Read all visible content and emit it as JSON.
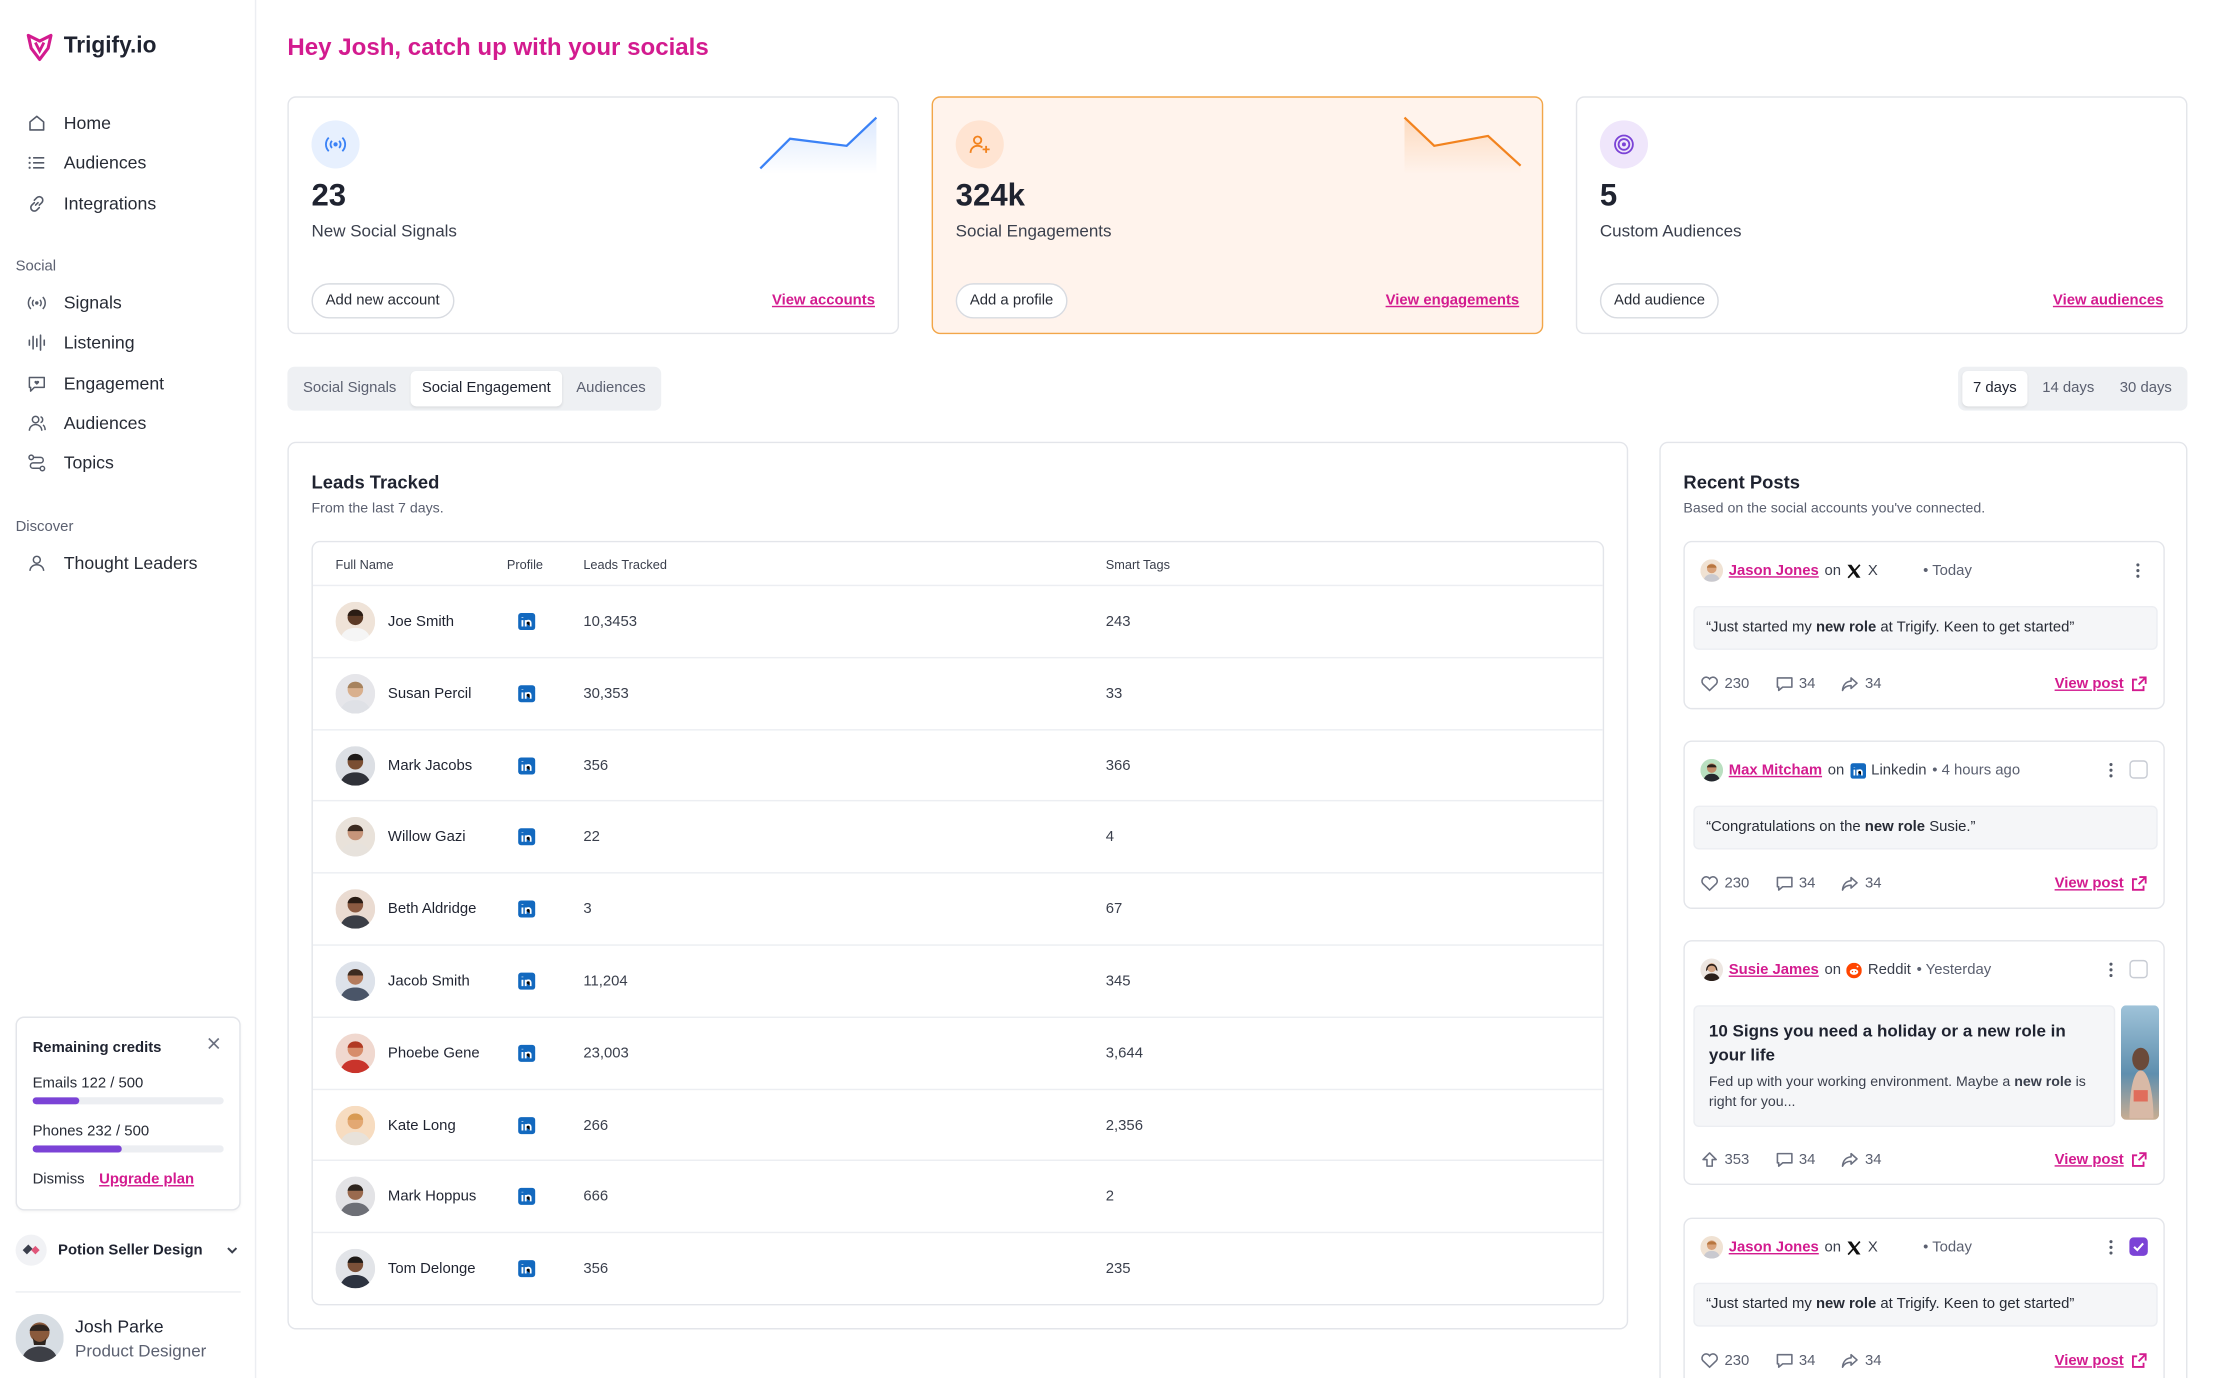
{
  "app": {
    "brand": "Trigify.io",
    "accent": "#d31b8f"
  },
  "sidebar": {
    "primary": [
      {
        "label": "Home",
        "icon": "home-icon"
      },
      {
        "label": "Audiences",
        "icon": "list-icon"
      },
      {
        "label": "Integrations",
        "icon": "link-icon"
      }
    ],
    "social_label": "Social",
    "social": [
      {
        "label": "Signals",
        "icon": "signal-icon"
      },
      {
        "label": "Listening",
        "icon": "waveform-icon"
      },
      {
        "label": "Engagement",
        "icon": "chat-heart-icon"
      },
      {
        "label": "Audiences",
        "icon": "users-icon"
      },
      {
        "label": "Topics",
        "icon": "route-icon"
      }
    ],
    "discover_label": "Discover",
    "discover": [
      {
        "label": "Thought Leaders",
        "icon": "user-icon"
      }
    ],
    "credits": {
      "title": "Remaining credits",
      "emails_label": "Emails 122 / 500",
      "emails_fraction": 0.244,
      "phones_label": "Phones 232 / 500",
      "phones_fraction": 0.464,
      "dismiss": "Dismiss",
      "upgrade": "Upgrade plan"
    },
    "workspace": "Potion Seller Design",
    "user": {
      "name": "Josh Parke",
      "role": "Product Designer"
    }
  },
  "greeting": "Hey Josh, catch up with your socials",
  "stats": [
    {
      "value": "23",
      "label": "New Social Signals",
      "button": "Add new account",
      "link": "View accounts",
      "icon": "broadcast-icon",
      "color": "#3b82f6"
    },
    {
      "value": "324k",
      "label": "Social Engagements",
      "button": "Add a profile",
      "link": "View engagements",
      "icon": "user-plus-icon",
      "color": "#f2831f"
    },
    {
      "value": "5",
      "label": "Custom Audiences",
      "button": "Add audience",
      "link": "View audiences",
      "icon": "target-icon",
      "color": "#7b43d6"
    }
  ],
  "tabs": [
    "Social Signals",
    "Social Engagement",
    "Audiences"
  ],
  "active_tab": "Social Engagement",
  "ranges": [
    "7 days",
    "14 days",
    "30 days"
  ],
  "active_range": "7 days",
  "leads": {
    "title": "Leads Tracked",
    "subtitle": "From the last 7 days.",
    "columns": [
      "Full Name",
      "Profile",
      "Leads Tracked",
      "Smart Tags"
    ],
    "rows": [
      {
        "name": "Joe Smith",
        "leads": "10,3453",
        "tags": "243"
      },
      {
        "name": "Susan Percil",
        "leads": "30,353",
        "tags": "33"
      },
      {
        "name": "Mark Jacobs",
        "leads": "356",
        "tags": "366"
      },
      {
        "name": "Willow Gazi",
        "leads": "22",
        "tags": "4"
      },
      {
        "name": "Beth Aldridge",
        "leads": "3",
        "tags": "67"
      },
      {
        "name": "Jacob Smith",
        "leads": "11,204",
        "tags": "345"
      },
      {
        "name": "Phoebe Gene",
        "leads": "23,003",
        "tags": "3,644"
      },
      {
        "name": "Kate Long",
        "leads": "266",
        "tags": "2,356"
      },
      {
        "name": "Mark Hoppus",
        "leads": "666",
        "tags": "2"
      },
      {
        "name": "Tom Delonge",
        "leads": "356",
        "tags": "235"
      }
    ]
  },
  "recent": {
    "title": "Recent Posts",
    "subtitle": "Based on the social accounts you've connected.",
    "on": "on",
    "view_post": "View post",
    "posts": [
      {
        "author": "Jason Jones",
        "platform": "X",
        "time": "• Today",
        "pre": "“Just started my ",
        "bold": "new role",
        "post": " at Trigify. Keen to get started”",
        "likes": "230",
        "comments": "34",
        "shares": "34"
      },
      {
        "author": "Max Mitcham",
        "platform": "Linkedin",
        "time": "• 4 hours ago",
        "pre": "“Congratulations on the ",
        "bold": "new role",
        "post": " Susie.”",
        "likes": "230",
        "comments": "34",
        "shares": "34"
      },
      {
        "author": "Susie James",
        "platform": "Reddit",
        "time": "• Yesterday",
        "heading": "10 Signs you need a holiday or a new role in your life",
        "pre": "Fed up with your working environment. Maybe a ",
        "bold": "new role",
        "post": " is right for you...",
        "likes": "353",
        "comments": "34",
        "shares": "34"
      },
      {
        "author": "Jason Jones",
        "platform": "X",
        "time": "• Today",
        "pre": "“Just started my ",
        "bold": "new role",
        "post": " at Trigify. Keen to get started”",
        "likes": "230",
        "comments": "34",
        "shares": "34"
      }
    ]
  }
}
